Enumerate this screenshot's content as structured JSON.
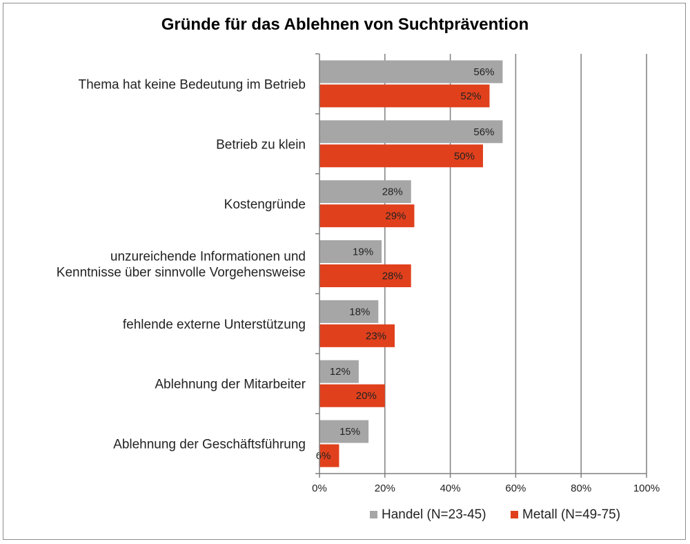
{
  "chart_data": {
    "type": "bar",
    "orientation": "horizontal",
    "title": "Gründe für das Ablehnen von Suchtprävention",
    "categories": [
      [
        "Thema hat keine Bedeutung im Betrieb"
      ],
      [
        "Betrieb zu klein"
      ],
      [
        "Kostengründe"
      ],
      [
        "unzureichende Informationen und",
        "Kenntnisse über sinnvolle Vorgehensweise"
      ],
      [
        "fehlende externe Unterstützung"
      ],
      [
        "Ablehnung der Mitarbeiter"
      ],
      [
        "Ablehnung der Geschäftsführung"
      ]
    ],
    "series": [
      {
        "name": "Handel (N=23-45)",
        "color": "#a6a6a6",
        "values": [
          56,
          56,
          28,
          19,
          18,
          12,
          15
        ]
      },
      {
        "name": "Metall (N=49-75)",
        "color": "#e0401c",
        "values": [
          52,
          50,
          29,
          28,
          23,
          20,
          6
        ]
      }
    ],
    "value_suffix": "%",
    "xlim": [
      0,
      100
    ],
    "xticks": [
      "0%",
      "20%",
      "40%",
      "60%",
      "80%",
      "100%"
    ],
    "xtick_values": [
      0,
      20,
      40,
      60,
      80,
      100
    ],
    "grid": "vertical",
    "legend": "bottom-right"
  }
}
